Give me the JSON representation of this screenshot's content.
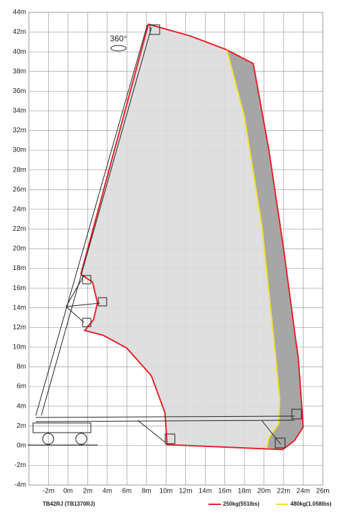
{
  "chart_data": {
    "type": "working-range",
    "title": "TB42RJ (TB1370RJ)",
    "annotation": "360°",
    "xlim": [
      -4,
      26
    ],
    "ylim": [
      -4,
      44
    ],
    "xticks": [
      {
        "value": -2,
        "label": "-2m"
      },
      {
        "value": 0,
        "label": "0m"
      },
      {
        "value": 2,
        "label": "2m"
      },
      {
        "value": 4,
        "label": "4m"
      },
      {
        "value": 6,
        "label": "6m"
      },
      {
        "value": 8,
        "label": "8m"
      },
      {
        "value": 10,
        "label": "10m"
      },
      {
        "value": 12,
        "label": "12m"
      },
      {
        "value": 14,
        "label": "14m"
      },
      {
        "value": 16,
        "label": "16m"
      },
      {
        "value": 18,
        "label": "18m"
      },
      {
        "value": 20,
        "label": "20m"
      },
      {
        "value": 22,
        "label": "22m"
      },
      {
        "value": 24,
        "label": "24m"
      },
      {
        "value": 26,
        "label": "26m"
      }
    ],
    "yticks": [
      {
        "value": -4,
        "label": "-4m"
      },
      {
        "value": -2,
        "label": "-2m"
      },
      {
        "value": 0,
        "label": "0m"
      },
      {
        "value": 2,
        "label": "2m"
      },
      {
        "value": 4,
        "label": "4m"
      },
      {
        "value": 6,
        "label": "6m"
      },
      {
        "value": 8,
        "label": "8m"
      },
      {
        "value": 10,
        "label": "10m"
      },
      {
        "value": 12,
        "label": "12m"
      },
      {
        "value": 14,
        "label": "14m"
      },
      {
        "value": 16,
        "label": "16m"
      },
      {
        "value": 18,
        "label": "18m"
      },
      {
        "value": 20,
        "label": "20m"
      },
      {
        "value": 22,
        "label": "22m"
      },
      {
        "value": 24,
        "label": "24m"
      },
      {
        "value": 26,
        "label": "26m"
      },
      {
        "value": 28,
        "label": "28m"
      },
      {
        "value": 30,
        "label": "30m"
      },
      {
        "value": 32,
        "label": "32m"
      },
      {
        "value": 34,
        "label": "34m"
      },
      {
        "value": 36,
        "label": "36m"
      },
      {
        "value": 38,
        "label": "38m"
      },
      {
        "value": 40,
        "label": "40m"
      },
      {
        "value": 42,
        "label": "42m"
      },
      {
        "value": 44,
        "label": "44m"
      }
    ],
    "grid": true,
    "series": [
      {
        "name": "250kg(551lbs)",
        "color": "#e8202a",
        "x": [
          1.3,
          8.2,
          12.5,
          16.2,
          18.9,
          20.5,
          22.0,
          23.2,
          23.5,
          24.0,
          23.1,
          21.9,
          10.1,
          9.9,
          8.5,
          6.0,
          3.6,
          1.7,
          2.6,
          3.0,
          2.5,
          1.3
        ],
        "y": [
          17.4,
          42.8,
          41.6,
          40.2,
          38.8,
          30.0,
          20.0,
          11.0,
          8.9,
          1.9,
          0.5,
          -0.4,
          0.1,
          3.3,
          7.1,
          9.9,
          11.2,
          11.7,
          12.8,
          14.5,
          16.6,
          17.4
        ]
      },
      {
        "name": "480kg(1.058lbs)",
        "color": "#f2e229",
        "x": [
          16.2,
          18.0,
          19.8,
          21.2,
          21.6,
          21.5,
          20.5,
          20.3
        ],
        "y": [
          40.2,
          33.4,
          22.2,
          8.9,
          4.7,
          2.2,
          0.8,
          -0.2
        ]
      }
    ]
  }
}
